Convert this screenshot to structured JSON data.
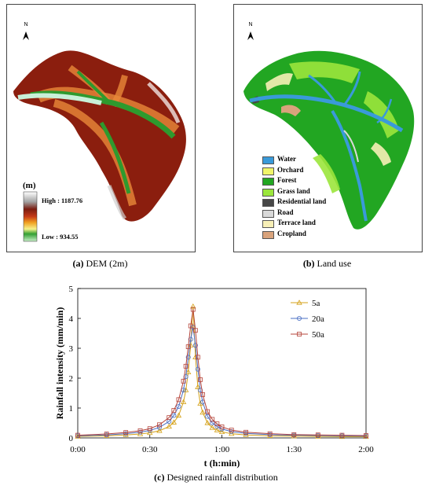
{
  "panel_a": {
    "north_label": "N",
    "legend_unit": "(m)",
    "legend_high": "High : 1187.76",
    "legend_low": "Low : 934.55",
    "caption_label": "(a)",
    "caption_text": " DEM (2m)"
  },
  "panel_b": {
    "north_label": "N",
    "legend": [
      {
        "label": "Water",
        "color": "#3a9ad9"
      },
      {
        "label": "Orchard",
        "color": "#f0f56a"
      },
      {
        "label": "Forest",
        "color": "#22a622"
      },
      {
        "label": "Grass land",
        "color": "#9be63c"
      },
      {
        "label": "Residential land",
        "color": "#474747"
      },
      {
        "label": "Road",
        "color": "#d9d9d9"
      },
      {
        "label": "Terrace land",
        "color": "#f7efb6"
      },
      {
        "label": "Cropland",
        "color": "#d9a37c"
      }
    ],
    "caption_label": "(b)",
    "caption_text": " Land use"
  },
  "chart_data": {
    "type": "line",
    "title": "",
    "xlabel": "t (h:min)",
    "ylabel": "Rainfall intensity (mm/min)",
    "xlim": [
      0,
      120
    ],
    "ylim": [
      0,
      5
    ],
    "x_ticks": [
      0,
      30,
      60,
      90,
      120
    ],
    "x_tick_labels": [
      "0:00",
      "0:30",
      "1:00",
      "1:30",
      "2:00"
    ],
    "y_ticks": [
      0,
      1,
      2,
      3,
      4,
      5
    ],
    "y_tick_labels": [
      "0",
      "1",
      "2",
      "3",
      "4",
      "5"
    ],
    "legend_position": "top-right",
    "peak_time": 48,
    "series": [
      {
        "name": "5a",
        "color": "#d4a017",
        "marker": "triangle",
        "x": [
          0,
          12,
          20,
          26,
          30,
          34,
          38,
          40,
          42,
          44,
          45,
          46,
          47,
          48,
          49,
          50,
          51,
          52,
          54,
          56,
          58,
          60,
          64,
          70,
          80,
          90,
          100,
          110,
          120
        ],
        "y": [
          0.05,
          0.07,
          0.1,
          0.13,
          0.17,
          0.24,
          0.38,
          0.52,
          0.75,
          1.2,
          1.6,
          2.2,
          3.1,
          4.4,
          2.7,
          1.7,
          1.15,
          0.85,
          0.5,
          0.34,
          0.26,
          0.2,
          0.14,
          0.1,
          0.07,
          0.06,
          0.05,
          0.04,
          0.04
        ]
      },
      {
        "name": "20a",
        "color": "#4a6fc4",
        "marker": "circle",
        "x": [
          0,
          12,
          20,
          26,
          30,
          34,
          38,
          40,
          42,
          44,
          45,
          46,
          47,
          48,
          49,
          50,
          51,
          52,
          54,
          56,
          58,
          60,
          64,
          70,
          80,
          90,
          100,
          110,
          120
        ],
        "y": [
          0.07,
          0.1,
          0.14,
          0.19,
          0.25,
          0.35,
          0.55,
          0.75,
          1.05,
          1.6,
          2.05,
          2.7,
          3.3,
          3.7,
          3.1,
          2.3,
          1.6,
          1.2,
          0.72,
          0.5,
          0.38,
          0.3,
          0.21,
          0.15,
          0.11,
          0.09,
          0.08,
          0.07,
          0.06
        ]
      },
      {
        "name": "50a",
        "color": "#b5443a",
        "marker": "square",
        "x": [
          0,
          12,
          20,
          26,
          30,
          34,
          38,
          40,
          42,
          44,
          45,
          46,
          47,
          48,
          49,
          50,
          51,
          52,
          54,
          56,
          58,
          60,
          64,
          70,
          80,
          90,
          100,
          110,
          120
        ],
        "y": [
          0.09,
          0.13,
          0.18,
          0.24,
          0.31,
          0.44,
          0.68,
          0.92,
          1.28,
          1.9,
          2.4,
          3.05,
          3.75,
          4.3,
          3.6,
          2.7,
          1.95,
          1.45,
          0.88,
          0.62,
          0.47,
          0.37,
          0.26,
          0.19,
          0.14,
          0.11,
          0.1,
          0.09,
          0.08
        ]
      }
    ]
  },
  "panel_c": {
    "caption_label": "(c)",
    "caption_text": " Designed rainfall distribution"
  }
}
